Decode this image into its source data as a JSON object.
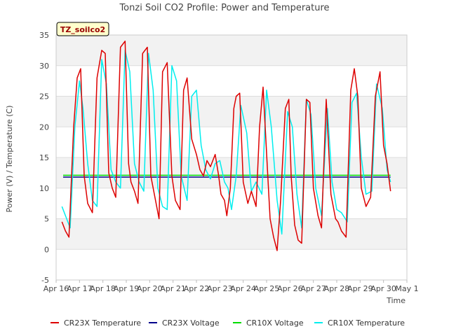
{
  "chart_data": {
    "type": "line",
    "title": "Tonzi Soil CO2 Profile: Power and Temperature",
    "site_label": "TZ_soilco2",
    "xlabel": "Time",
    "ylabel": "Power (V) / Temperature (C)",
    "ylim": [
      -5,
      35
    ],
    "yticks": [
      -5,
      0,
      5,
      10,
      15,
      20,
      25,
      30,
      35
    ],
    "xlim": [
      16,
      31
    ],
    "xticks": [
      16,
      17,
      18,
      19,
      20,
      21,
      22,
      23,
      24,
      25,
      26,
      27,
      28,
      29,
      30,
      31
    ],
    "xtick_labels": [
      "Apr 16",
      "Apr 17",
      "Apr 18",
      "Apr 19",
      "Apr 20",
      "Apr 21",
      "Apr 22",
      "Apr 23",
      "Apr 24",
      "Apr 25",
      "Apr 26",
      "Apr 27",
      "Apr 28",
      "Apr 29",
      "Apr 30",
      "May 1"
    ],
    "grid": true,
    "legend_position": "bottom",
    "series": [
      {
        "name": "CR23X Temperature",
        "color": "#dd0000",
        "x": [
          16.25,
          16.4,
          16.55,
          16.75,
          16.9,
          17.05,
          17.2,
          17.35,
          17.55,
          17.75,
          17.95,
          18.1,
          18.25,
          18.4,
          18.55,
          18.75,
          18.95,
          19.1,
          19.2,
          19.35,
          19.5,
          19.7,
          19.9,
          20.05,
          20.2,
          20.4,
          20.55,
          20.75,
          20.95,
          21.1,
          21.3,
          21.45,
          21.6,
          21.8,
          22.0,
          22.15,
          22.3,
          22.45,
          22.6,
          22.8,
          22.95,
          23.05,
          23.2,
          23.3,
          23.45,
          23.6,
          23.7,
          23.85,
          24.0,
          24.2,
          24.35,
          24.55,
          24.7,
          24.85,
          25.05,
          25.15,
          25.3,
          25.45,
          25.6,
          25.8,
          25.95,
          26.05,
          26.2,
          26.35,
          26.5,
          26.7,
          26.85,
          27.0,
          27.2,
          27.35,
          27.55,
          27.75,
          27.95,
          28.05,
          28.2,
          28.4,
          28.6,
          28.75,
          28.9,
          29.05,
          29.25,
          29.45,
          29.65,
          29.85,
          30.0,
          30.15,
          30.3
        ],
        "y": [
          4.5,
          3.0,
          2.0,
          20.0,
          28.0,
          29.5,
          12.0,
          7.5,
          6.0,
          28.0,
          32.5,
          32.0,
          12.5,
          10.0,
          8.5,
          33.0,
          34.0,
          14.0,
          11.0,
          9.5,
          7.5,
          32.0,
          33.0,
          12.0,
          9.0,
          5.0,
          29.0,
          30.5,
          12.0,
          8.0,
          6.5,
          26.0,
          28.0,
          18.0,
          15.5,
          13.0,
          12.0,
          14.5,
          13.5,
          15.5,
          12.0,
          9.0,
          8.0,
          5.5,
          10.0,
          23.0,
          25.0,
          25.5,
          11.0,
          7.5,
          9.5,
          7.0,
          20.0,
          26.5,
          12.0,
          5.0,
          2.0,
          -0.2,
          8.0,
          23.0,
          24.5,
          12.0,
          4.0,
          1.5,
          1.0,
          24.5,
          24.0,
          10.0,
          5.5,
          3.5,
          24.5,
          9.0,
          5.0,
          4.5,
          3.0,
          2.0,
          26.0,
          29.5,
          25.0,
          10.0,
          7.0,
          8.5,
          25.0,
          29.0,
          17.0,
          14.0,
          9.5
        ]
      },
      {
        "name": "CR23X Voltage",
        "color": "#00008b",
        "x": [
          16.3,
          30.3
        ],
        "y": [
          11.8,
          11.8
        ]
      },
      {
        "name": "CR10X Voltage",
        "color": "#00dd00",
        "x": [
          16.3,
          30.3
        ],
        "y": [
          12.1,
          12.1
        ]
      },
      {
        "name": "CR10X Temperature",
        "color": "#00eeee",
        "x": [
          16.25,
          16.45,
          16.6,
          16.8,
          17.0,
          17.15,
          17.35,
          17.55,
          17.75,
          17.95,
          18.15,
          18.35,
          18.55,
          18.75,
          18.95,
          19.15,
          19.35,
          19.55,
          19.75,
          19.95,
          20.15,
          20.35,
          20.55,
          20.75,
          20.95,
          21.15,
          21.35,
          21.6,
          21.8,
          22.0,
          22.2,
          22.4,
          22.6,
          22.8,
          23.0,
          23.2,
          23.35,
          23.5,
          23.7,
          23.9,
          24.15,
          24.35,
          24.55,
          24.8,
          25.0,
          25.2,
          25.45,
          25.65,
          25.9,
          26.1,
          26.3,
          26.5,
          26.7,
          26.9,
          27.1,
          27.35,
          27.6,
          27.8,
          28.0,
          28.2,
          28.45,
          28.65,
          28.85,
          29.05,
          29.25,
          29.5,
          29.7,
          29.95,
          30.15,
          30.3
        ],
        "y": [
          7.0,
          5.0,
          3.5,
          20.0,
          27.5,
          23.0,
          14.0,
          8.0,
          7.0,
          31.0,
          27.0,
          13.0,
          11.0,
          10.0,
          32.5,
          29.0,
          14.0,
          11.0,
          9.5,
          32.0,
          26.0,
          10.0,
          7.0,
          6.5,
          30.0,
          27.5,
          12.0,
          8.0,
          25.0,
          26.0,
          17.0,
          13.0,
          11.5,
          14.0,
          14.5,
          11.0,
          10.0,
          6.5,
          12.0,
          23.5,
          19.0,
          9.5,
          11.0,
          9.0,
          26.0,
          20.0,
          8.0,
          2.5,
          22.5,
          20.0,
          9.0,
          3.5,
          24.5,
          22.0,
          10.0,
          5.5,
          23.0,
          11.0,
          6.5,
          6.0,
          4.5,
          24.0,
          25.5,
          15.0,
          9.0,
          9.5,
          27.0,
          23.0,
          13.0,
          11.0
        ]
      }
    ]
  }
}
